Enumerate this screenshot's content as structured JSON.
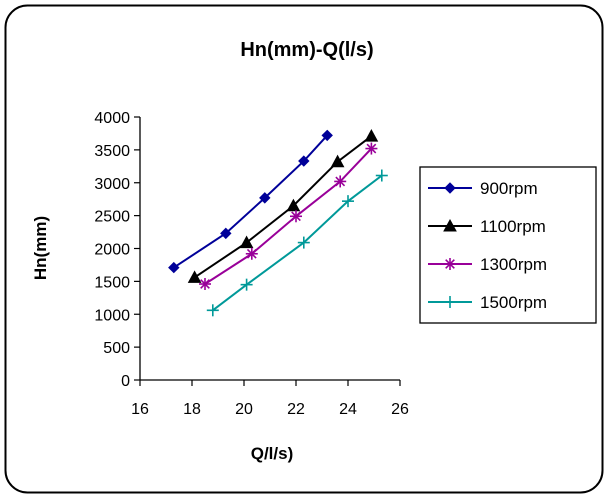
{
  "chart_data": {
    "type": "line",
    "title": "Hn(mm)-Q(l/s)",
    "xlabel": "Q/l/s)",
    "ylabel": "Hn(mm)",
    "xlim": [
      16,
      26
    ],
    "ylim": [
      0,
      4000
    ],
    "x_ticks": [
      "16",
      "18",
      "20",
      "22",
      "24",
      "26"
    ],
    "y_ticks": [
      "0",
      "500",
      "1000",
      "1500",
      "2000",
      "2500",
      "3000",
      "3500",
      "4000"
    ],
    "grid": false,
    "legend_position": "right",
    "series": [
      {
        "name": "900rpm",
        "color": "#000099",
        "marker": "diamond",
        "points": [
          [
            17.3,
            1710
          ],
          [
            19.3,
            2230
          ],
          [
            20.8,
            2770
          ],
          [
            22.3,
            3330
          ],
          [
            23.2,
            3720
          ]
        ]
      },
      {
        "name": "1100rpm",
        "color": "#000000",
        "marker": "triangle",
        "points": [
          [
            18.1,
            1560
          ],
          [
            20.1,
            2090
          ],
          [
            21.9,
            2650
          ],
          [
            23.6,
            3320
          ],
          [
            24.9,
            3710
          ]
        ]
      },
      {
        "name": "1300rpm",
        "color": "#990099",
        "marker": "asterisk",
        "points": [
          [
            18.5,
            1460
          ],
          [
            20.3,
            1920
          ],
          [
            22.0,
            2490
          ],
          [
            23.7,
            3020
          ],
          [
            24.9,
            3520
          ]
        ]
      },
      {
        "name": "1500rpm",
        "color": "#009999",
        "marker": "plus",
        "points": [
          [
            18.8,
            1060
          ],
          [
            20.1,
            1450
          ],
          [
            22.3,
            2090
          ],
          [
            24.0,
            2720
          ],
          [
            25.3,
            3110
          ]
        ]
      }
    ]
  }
}
